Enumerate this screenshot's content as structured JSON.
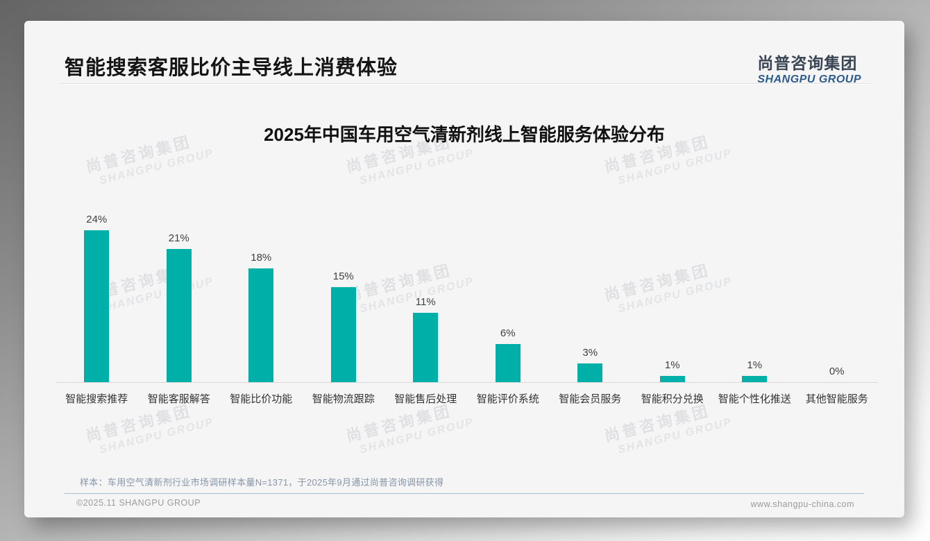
{
  "page": {
    "header_title": "智能搜索客服比价主导线上消费体验",
    "logo": {
      "cn": "尚普咨询集团",
      "en": "SHANGPU GROUP"
    },
    "watermark": {
      "cn": "尚普咨询集团",
      "en": "SHANGPU GROUP"
    },
    "footnote": "样本：车用空气清新剂行业市场调研样本量N=1371，于2025年9月通过尚普咨询调研获得",
    "footer_left": "©2025.11 SHANGPU GROUP",
    "footer_right": "www.shangpu-china.com"
  },
  "colors": {
    "bar": "#00b0a8",
    "logo_en_blue": "#2b5a8e",
    "footer_divider": "#a8bdd1",
    "slide_background": "#f5f5f6"
  },
  "chart_data": {
    "type": "bar",
    "title": "2025年中国车用空气清新剂线上智能服务体验分布",
    "categories": [
      "智能搜索推荐",
      "智能客服解答",
      "智能比价功能",
      "智能物流跟踪",
      "智能售后处理",
      "智能评价系统",
      "智能会员服务",
      "智能积分兑换",
      "智能个性化推送",
      "其他智能服务"
    ],
    "values": [
      24,
      21,
      18,
      15,
      11,
      6,
      3,
      1,
      1,
      0
    ],
    "value_labels": [
      "24%",
      "21%",
      "18%",
      "15%",
      "11%",
      "6%",
      "3%",
      "1%",
      "1%",
      "0%"
    ],
    "unit": "%",
    "xlabel": "",
    "ylabel": "",
    "ylim": [
      0,
      26
    ],
    "grid": false,
    "legend": false,
    "data_labels_shown": true,
    "bar_color": "#00b0a8"
  }
}
